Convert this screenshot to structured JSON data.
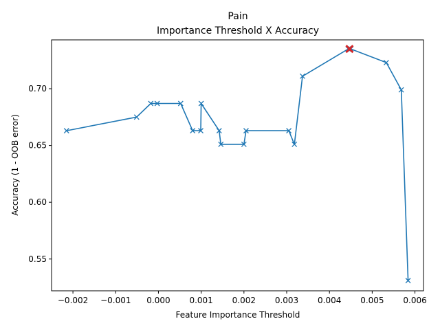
{
  "chart_data": {
    "type": "line",
    "title": "Pain",
    "subtitle": "Importance Threshold X Accuracy",
    "xlabel": "Feature Importance Threshold",
    "ylabel": "Accuracy (1 - OOB error)",
    "xlim": [
      -0.0025,
      0.0062
    ],
    "ylim": [
      0.522,
      0.743
    ],
    "grid": false,
    "x_ticks": [
      -0.002,
      -0.001,
      0.0,
      0.001,
      0.002,
      0.003,
      0.004,
      0.005,
      0.006
    ],
    "x_tick_labels": [
      "−0.002",
      "−0.001",
      "0.000",
      "0.001",
      "0.002",
      "0.003",
      "0.004",
      "0.005",
      "0.006"
    ],
    "y_ticks": [
      0.55,
      0.6,
      0.65,
      0.7
    ],
    "y_tick_labels": [
      "0.55",
      "0.60",
      "0.65",
      "0.70"
    ],
    "series": [
      {
        "color": "#1f77b4",
        "marker": "x",
        "x": [
          -0.00215,
          -0.00051,
          -0.00018,
          -3e-05,
          0.00052,
          0.0008,
          0.00099,
          0.001,
          0.00142,
          0.00146,
          0.002,
          0.00205,
          0.00305,
          0.00318,
          0.00337,
          0.00444,
          0.0045,
          0.00533,
          0.00568,
          0.00584
        ],
        "y": [
          0.663,
          0.675,
          0.687,
          0.687,
          0.687,
          0.663,
          0.663,
          0.687,
          0.663,
          0.651,
          0.651,
          0.663,
          0.663,
          0.651,
          0.711,
          0.735,
          0.735,
          0.723,
          0.699,
          0.531
        ]
      }
    ],
    "highlight": {
      "color": "#d62728",
      "marker": "x",
      "x": 0.00447,
      "y": 0.735
    }
  }
}
